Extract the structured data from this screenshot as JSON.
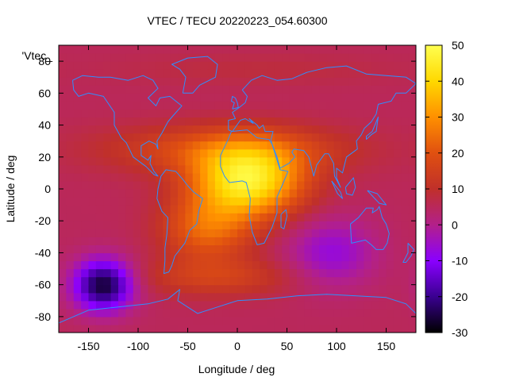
{
  "chart_data": {
    "type": "heatmap",
    "title": "VTEC / TECU 20220223_054.60300",
    "xlabel": "Longitude / deg",
    "ylabel": "Latitude / deg",
    "key_label": "'Vtec_",
    "xlim": [
      -180,
      180
    ],
    "ylim": [
      -90,
      90
    ],
    "xticks": [
      -150,
      -100,
      -50,
      0,
      50,
      100,
      150
    ],
    "yticks": [
      -80,
      -60,
      -40,
      -20,
      0,
      20,
      40,
      60,
      80
    ],
    "colorbar": {
      "range": [
        -30,
        50
      ],
      "ticks": [
        -30,
        -20,
        -10,
        0,
        10,
        20,
        30,
        40,
        50
      ],
      "stops": [
        "#000000",
        "#3a0090",
        "#8a00ff",
        "#b3208a",
        "#c0302a",
        "#e05010",
        "#ff9000",
        "#ffd800",
        "#ffff50"
      ]
    },
    "field": {
      "background": 5,
      "features": [
        {
          "name": "equatorial-crest",
          "lon": 10,
          "lat": 5,
          "amp": 40,
          "lon_w": 55,
          "lat_w": 22
        },
        {
          "name": "south-atlantic-lobe",
          "lon": -30,
          "lat": -25,
          "amp": 18,
          "lon_w": 45,
          "lat_w": 20
        },
        {
          "name": "southern-ocean-arc",
          "lon": -20,
          "lat": -55,
          "amp": 10,
          "lon_w": 80,
          "lat_w": 12
        },
        {
          "name": "north-tropical-band",
          "lon": -10,
          "lat": 25,
          "amp": 14,
          "lon_w": 120,
          "lat_w": 15
        },
        {
          "name": "pacific-minimum",
          "lon": -135,
          "lat": -60,
          "amp": -32,
          "lon_w": 30,
          "lat_w": 16
        },
        {
          "name": "indian-ocean-minimum",
          "lon": 95,
          "lat": -40,
          "amp": -12,
          "lon_w": 45,
          "lat_w": 22
        },
        {
          "name": "arctic-low",
          "lon": 20,
          "lat": 75,
          "amp": 3,
          "lon_w": 150,
          "lat_w": 10
        }
      ]
    },
    "coastlines": [
      {
        "name": "north-america",
        "points": [
          [
            -166,
            68
          ],
          [
            -156,
            71
          ],
          [
            -140,
            70
          ],
          [
            -128,
            70
          ],
          [
            -110,
            68
          ],
          [
            -95,
            71
          ],
          [
            -85,
            68
          ],
          [
            -80,
            63
          ],
          [
            -90,
            57
          ],
          [
            -82,
            52
          ],
          [
            -78,
            57
          ],
          [
            -68,
            58
          ],
          [
            -62,
            55
          ],
          [
            -56,
            52
          ],
          [
            -66,
            45
          ],
          [
            -70,
            42
          ],
          [
            -76,
            35
          ],
          [
            -81,
            30
          ],
          [
            -80,
            25
          ],
          [
            -82,
            28
          ],
          [
            -89,
            30
          ],
          [
            -97,
            27
          ],
          [
            -97,
            21
          ],
          [
            -90,
            18
          ],
          [
            -87,
            21
          ],
          [
            -88,
            16
          ],
          [
            -84,
            11
          ],
          [
            -80,
            8
          ],
          [
            -84,
            9
          ],
          [
            -92,
            14
          ],
          [
            -105,
            20
          ],
          [
            -112,
            29
          ],
          [
            -117,
            32
          ],
          [
            -124,
            40
          ],
          [
            -124,
            48
          ],
          [
            -135,
            58
          ],
          [
            -150,
            60
          ],
          [
            -160,
            58
          ],
          [
            -165,
            62
          ],
          [
            -166,
            68
          ]
        ]
      },
      {
        "name": "greenland",
        "points": [
          [
            -55,
            60
          ],
          [
            -45,
            60
          ],
          [
            -38,
            65
          ],
          [
            -22,
            70
          ],
          [
            -20,
            78
          ],
          [
            -30,
            83
          ],
          [
            -50,
            82
          ],
          [
            -66,
            78
          ],
          [
            -58,
            75
          ],
          [
            -52,
            70
          ],
          [
            -55,
            60
          ]
        ]
      },
      {
        "name": "south-america",
        "points": [
          [
            -77,
            8
          ],
          [
            -72,
            12
          ],
          [
            -62,
            11
          ],
          [
            -55,
            6
          ],
          [
            -50,
            2
          ],
          [
            -44,
            -2
          ],
          [
            -35,
            -6
          ],
          [
            -39,
            -14
          ],
          [
            -41,
            -22
          ],
          [
            -48,
            -26
          ],
          [
            -53,
            -34
          ],
          [
            -58,
            -38
          ],
          [
            -63,
            -42
          ],
          [
            -66,
            -48
          ],
          [
            -69,
            -52
          ],
          [
            -74,
            -53
          ],
          [
            -73,
            -45
          ],
          [
            -73,
            -37
          ],
          [
            -71,
            -28
          ],
          [
            -70,
            -18
          ],
          [
            -76,
            -14
          ],
          [
            -81,
            -6
          ],
          [
            -80,
            0
          ],
          [
            -77,
            8
          ]
        ]
      },
      {
        "name": "africa",
        "points": [
          [
            -17,
            21
          ],
          [
            -10,
            30
          ],
          [
            -6,
            36
          ],
          [
            10,
            37
          ],
          [
            20,
            32
          ],
          [
            32,
            31
          ],
          [
            35,
            28
          ],
          [
            43,
            12
          ],
          [
            51,
            11
          ],
          [
            45,
            2
          ],
          [
            40,
            -5
          ],
          [
            40,
            -15
          ],
          [
            35,
            -24
          ],
          [
            27,
            -34
          ],
          [
            20,
            -35
          ],
          [
            15,
            -27
          ],
          [
            12,
            -17
          ],
          [
            13,
            -6
          ],
          [
            9,
            4
          ],
          [
            5,
            5
          ],
          [
            -8,
            4
          ],
          [
            -13,
            8
          ],
          [
            -17,
            14
          ],
          [
            -17,
            21
          ]
        ]
      },
      {
        "name": "madagascar",
        "points": [
          [
            44,
            -16
          ],
          [
            49,
            -13
          ],
          [
            50,
            -17
          ],
          [
            47,
            -25
          ],
          [
            44,
            -24
          ],
          [
            44,
            -16
          ]
        ]
      },
      {
        "name": "eurasia",
        "points": [
          [
            -9,
            37
          ],
          [
            -9,
            43
          ],
          [
            -2,
            44
          ],
          [
            -5,
            48
          ],
          [
            2,
            51
          ],
          [
            8,
            54
          ],
          [
            10,
            58
          ],
          [
            5,
            62
          ],
          [
            14,
            68
          ],
          [
            25,
            71
          ],
          [
            40,
            68
          ],
          [
            55,
            69
          ],
          [
            70,
            73
          ],
          [
            90,
            76
          ],
          [
            110,
            77
          ],
          [
            130,
            72
          ],
          [
            150,
            71
          ],
          [
            170,
            70
          ],
          [
            180,
            66
          ],
          [
            170,
            60
          ],
          [
            160,
            60
          ],
          [
            155,
            55
          ],
          [
            142,
            53
          ],
          [
            140,
            47
          ],
          [
            135,
            42
          ],
          [
            128,
            38
          ],
          [
            125,
            34
          ],
          [
            120,
            30
          ],
          [
            121,
            25
          ],
          [
            110,
            20
          ],
          [
            106,
            10
          ],
          [
            100,
            13
          ],
          [
            100,
            7
          ],
          [
            104,
            1
          ],
          [
            98,
            8
          ],
          [
            97,
            16
          ],
          [
            92,
            22
          ],
          [
            88,
            22
          ],
          [
            80,
            15
          ],
          [
            77,
            8
          ],
          [
            72,
            20
          ],
          [
            67,
            24
          ],
          [
            57,
            25
          ],
          [
            55,
            23
          ],
          [
            58,
            20
          ],
          [
            52,
            16
          ],
          [
            43,
            13
          ],
          [
            40,
            20
          ],
          [
            35,
            28
          ],
          [
            34,
            31
          ],
          [
            36,
            36
          ],
          [
            28,
            36
          ],
          [
            26,
            40
          ],
          [
            22,
            38
          ],
          [
            20,
            40
          ],
          [
            12,
            44
          ],
          [
            16,
            41
          ],
          [
            8,
            44
          ],
          [
            3,
            43
          ],
          [
            -5,
            36
          ],
          [
            -9,
            37
          ]
        ]
      },
      {
        "name": "great-britain",
        "points": [
          [
            -5,
            50
          ],
          [
            1,
            51
          ],
          [
            0,
            54
          ],
          [
            -2,
            57
          ],
          [
            -5,
            58
          ],
          [
            -6,
            55
          ],
          [
            -3,
            54
          ],
          [
            -5,
            50
          ]
        ]
      },
      {
        "name": "japan",
        "points": [
          [
            130,
            31
          ],
          [
            135,
            34
          ],
          [
            140,
            36
          ],
          [
            141,
            41
          ],
          [
            142,
            45
          ],
          [
            140,
            42
          ],
          [
            136,
            36
          ],
          [
            130,
            33
          ],
          [
            130,
            31
          ]
        ]
      },
      {
        "name": "sumatra",
        "points": [
          [
            95,
            5
          ],
          [
            104,
            -2
          ],
          [
            106,
            -6
          ],
          [
            101,
            -3
          ],
          [
            95,
            5
          ]
        ]
      },
      {
        "name": "borneo",
        "points": [
          [
            109,
            1
          ],
          [
            117,
            7
          ],
          [
            119,
            1
          ],
          [
            116,
            -4
          ],
          [
            110,
            -3
          ],
          [
            109,
            1
          ]
        ]
      },
      {
        "name": "new-guinea",
        "points": [
          [
            131,
            -1
          ],
          [
            141,
            -3
          ],
          [
            150,
            -10
          ],
          [
            143,
            -9
          ],
          [
            137,
            -5
          ],
          [
            131,
            -1
          ]
        ]
      },
      {
        "name": "australia",
        "points": [
          [
            114,
            -22
          ],
          [
            122,
            -18
          ],
          [
            130,
            -12
          ],
          [
            137,
            -12
          ],
          [
            136,
            -15
          ],
          [
            141,
            -13
          ],
          [
            143,
            -11
          ],
          [
            146,
            -18
          ],
          [
            150,
            -22
          ],
          [
            153,
            -28
          ],
          [
            151,
            -34
          ],
          [
            147,
            -38
          ],
          [
            140,
            -38
          ],
          [
            135,
            -35
          ],
          [
            129,
            -32
          ],
          [
            115,
            -34
          ],
          [
            114,
            -22
          ]
        ]
      },
      {
        "name": "new-zealand",
        "points": [
          [
            172,
            -34
          ],
          [
            178,
            -38
          ],
          [
            175,
            -42
          ],
          [
            170,
            -46
          ],
          [
            167,
            -46
          ],
          [
            172,
            -40
          ],
          [
            172,
            -34
          ]
        ]
      },
      {
        "name": "antarctica",
        "points": [
          [
            -180,
            -84
          ],
          [
            -150,
            -76
          ],
          [
            -120,
            -74
          ],
          [
            -90,
            -72
          ],
          [
            -70,
            -69
          ],
          [
            -58,
            -63
          ],
          [
            -60,
            -70
          ],
          [
            -40,
            -78
          ],
          [
            -20,
            -74
          ],
          [
            0,
            -70
          ],
          [
            30,
            -69
          ],
          [
            60,
            -67
          ],
          [
            90,
            -66
          ],
          [
            120,
            -67
          ],
          [
            150,
            -68
          ],
          [
            170,
            -72
          ],
          [
            180,
            -78
          ]
        ]
      }
    ]
  }
}
